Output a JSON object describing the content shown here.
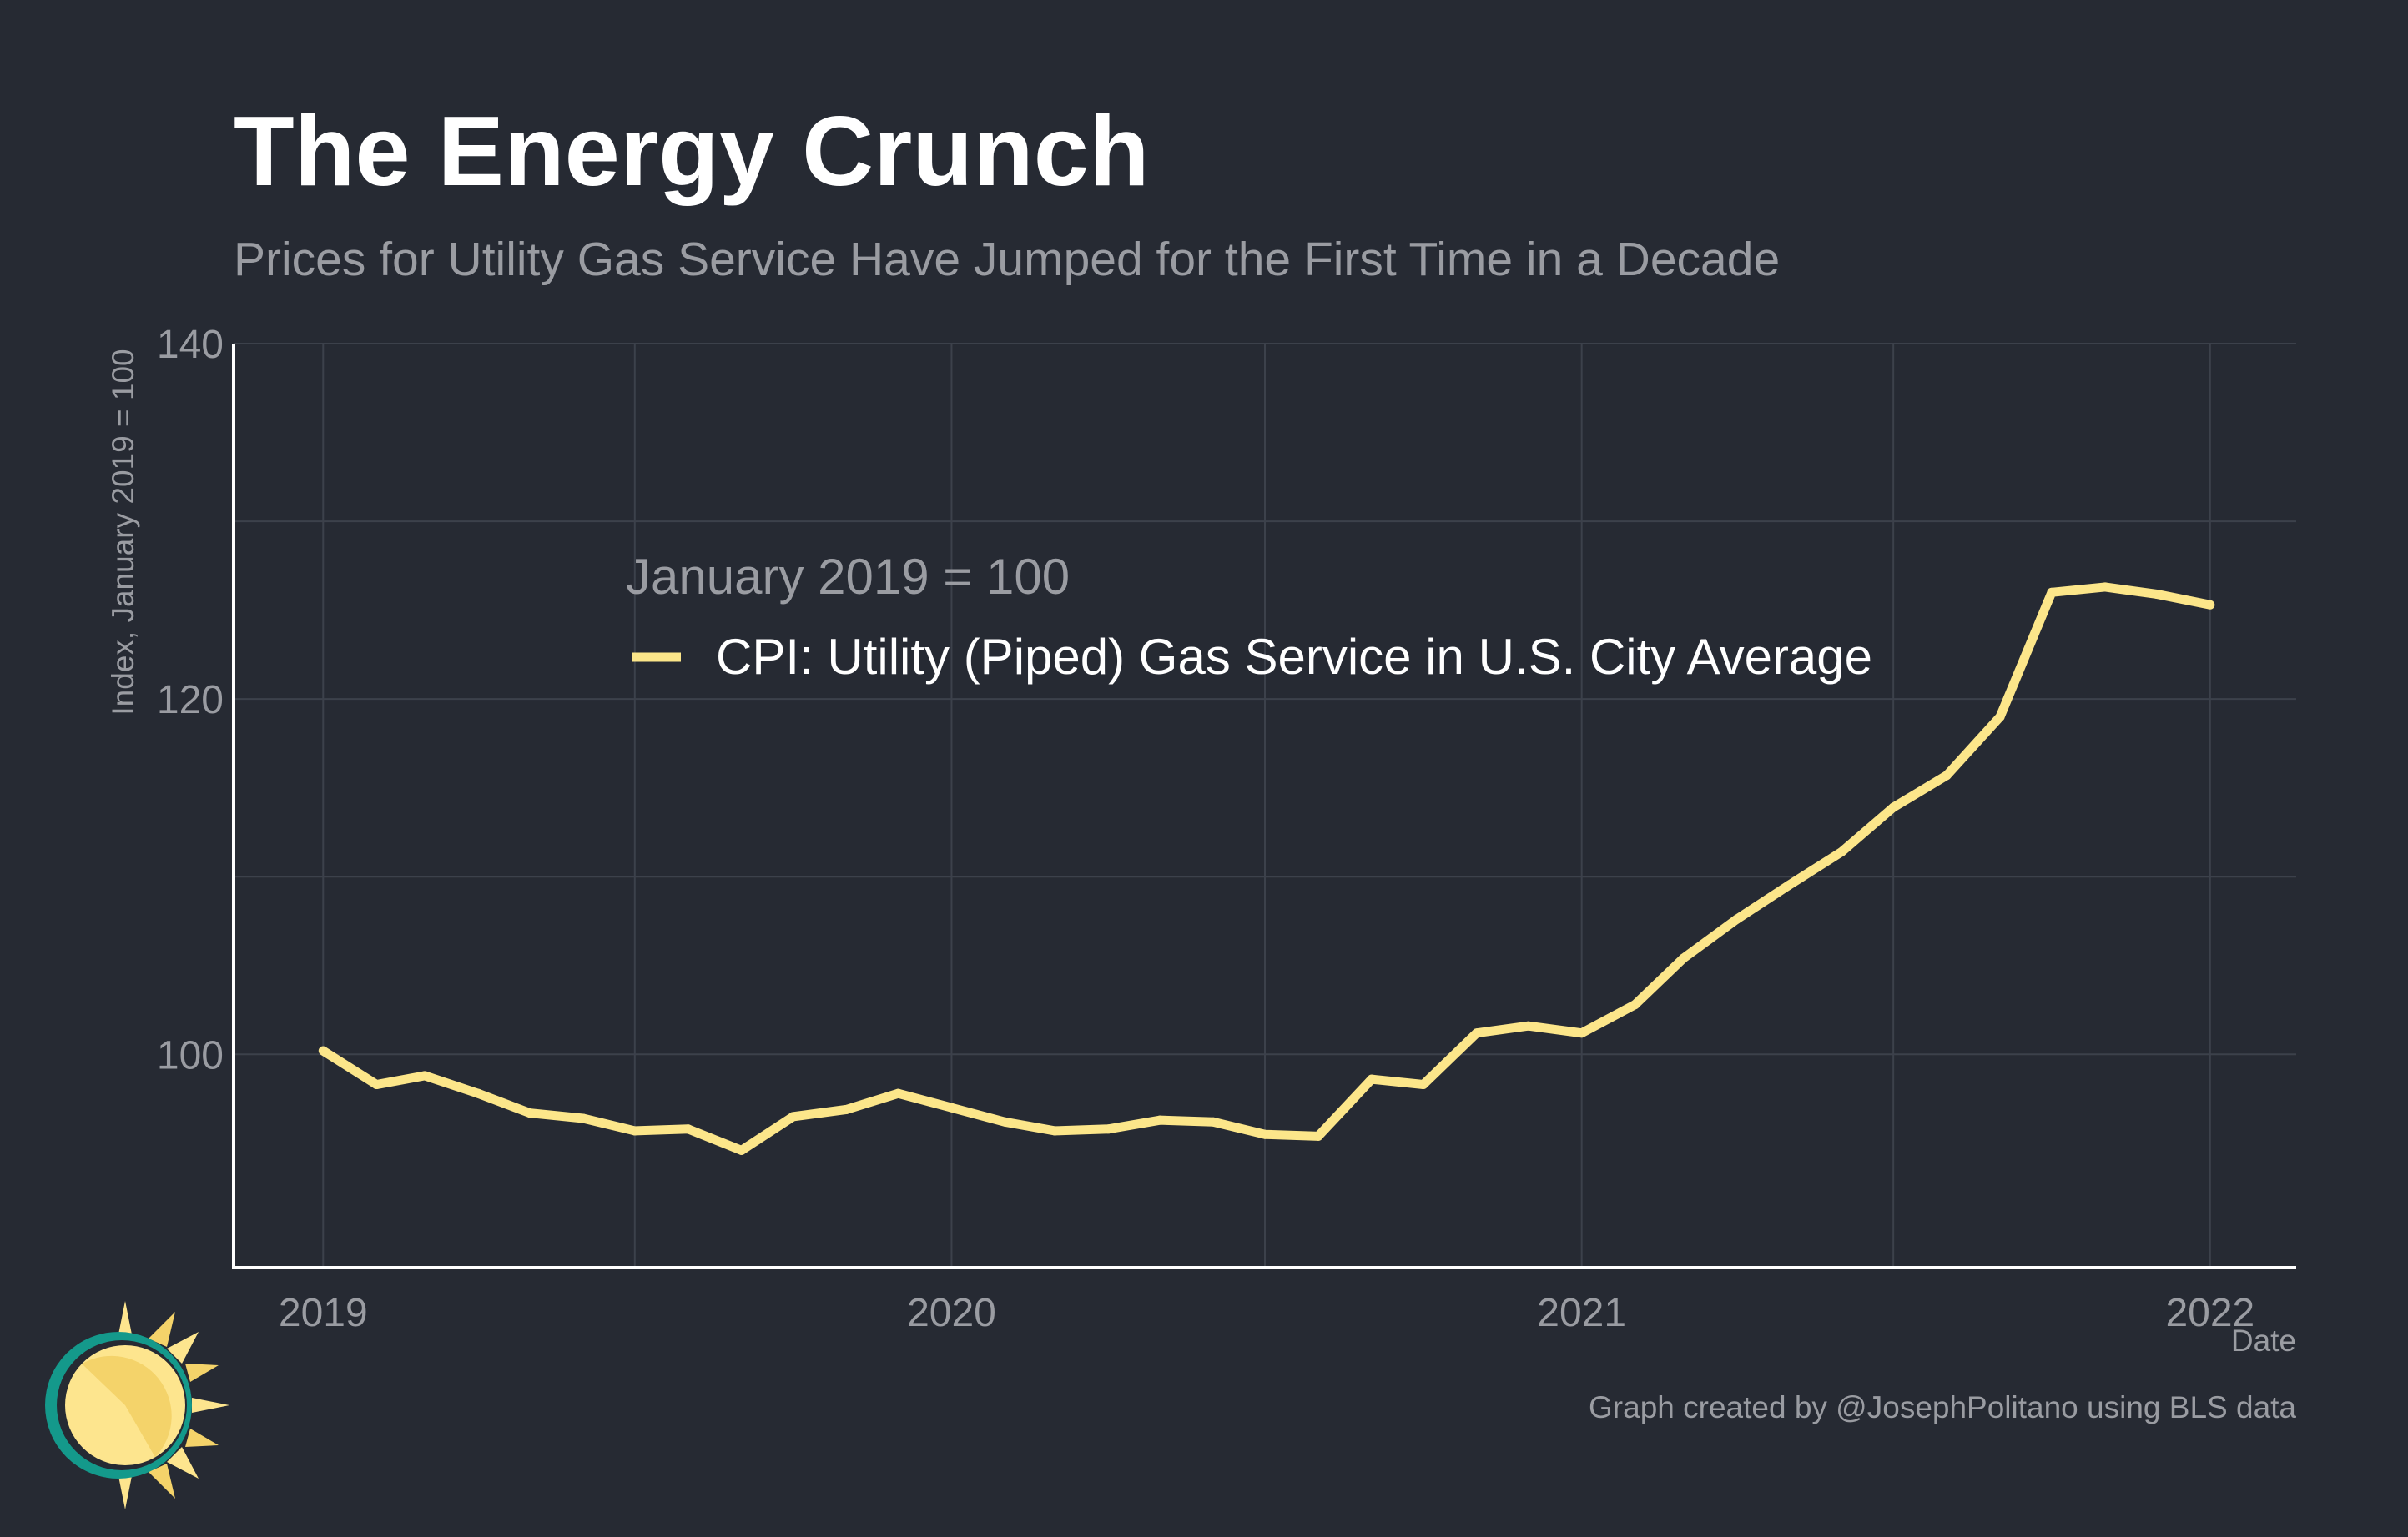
{
  "header": {
    "title": "The Energy Crunch",
    "subtitle": "Prices for Utility Gas Service Have Jumped for the First Time in a Decade"
  },
  "footer": {
    "caption": "Graph created by @JosephPolitano using BLS data"
  },
  "legend": {
    "title": "January 2019 = 100",
    "placement": "upper-center"
  },
  "colors": {
    "background": "#262a33",
    "line": "#fce68a",
    "grid": "#3c414b",
    "axis": "#ffffff",
    "title": "#ffffff",
    "muted": "#9a9ca2",
    "logo_ring": "#14998b",
    "logo_sun": "#fde58e",
    "logo_sun_shade": "#f4d36a"
  },
  "logo": {
    "icon": "sun-logo-icon"
  },
  "chart_data": {
    "type": "line",
    "title": "The Energy Crunch",
    "subtitle": "Prices for Utility Gas Service Have Jumped for the First Time in a Decade",
    "xlabel": "Date",
    "ylabel": "Index, January 2019 = 100",
    "xlim": [
      "2018-11-10",
      "2022-02-20"
    ],
    "ylim": [
      88,
      140
    ],
    "x_ticks": [
      {
        "date": "2019-01-01",
        "label": "2019"
      },
      {
        "date": "2020-01-01",
        "label": "2020"
      },
      {
        "date": "2021-01-01",
        "label": "2021"
      },
      {
        "date": "2022-01-01",
        "label": "2022"
      }
    ],
    "y_ticks": [
      100,
      120,
      140
    ],
    "y_minor_grid": [
      110,
      130
    ],
    "grid": true,
    "series": [
      {
        "name": "CPI: Utility (Piped) Gas Service in U.S. City Average",
        "color": "#fce68a",
        "x": [
          "2019-01",
          "2019-02",
          "2019-03",
          "2019-04",
          "2019-05",
          "2019-06",
          "2019-07",
          "2019-08",
          "2019-09",
          "2019-10",
          "2019-11",
          "2019-12",
          "2020-01",
          "2020-02",
          "2020-03",
          "2020-04",
          "2020-05",
          "2020-06",
          "2020-07",
          "2020-08",
          "2020-09",
          "2020-10",
          "2020-11",
          "2020-12",
          "2021-01",
          "2021-02",
          "2021-03",
          "2021-04",
          "2021-05",
          "2021-06",
          "2021-07",
          "2021-08",
          "2021-09",
          "2021-10",
          "2021-11",
          "2021-12",
          "2022-01"
        ],
        "y": [
          100.2,
          98.3,
          98.8,
          97.8,
          96.7,
          96.4,
          95.7,
          95.8,
          94.6,
          96.5,
          96.9,
          97.8,
          97.0,
          96.2,
          95.7,
          95.8,
          96.3,
          96.2,
          95.5,
          95.4,
          98.6,
          98.3,
          101.2,
          101.6,
          101.2,
          102.8,
          105.4,
          107.6,
          109.5,
          111.4,
          113.9,
          115.7,
          119.0,
          126.0,
          126.3,
          125.9,
          125.3
        ]
      }
    ]
  }
}
